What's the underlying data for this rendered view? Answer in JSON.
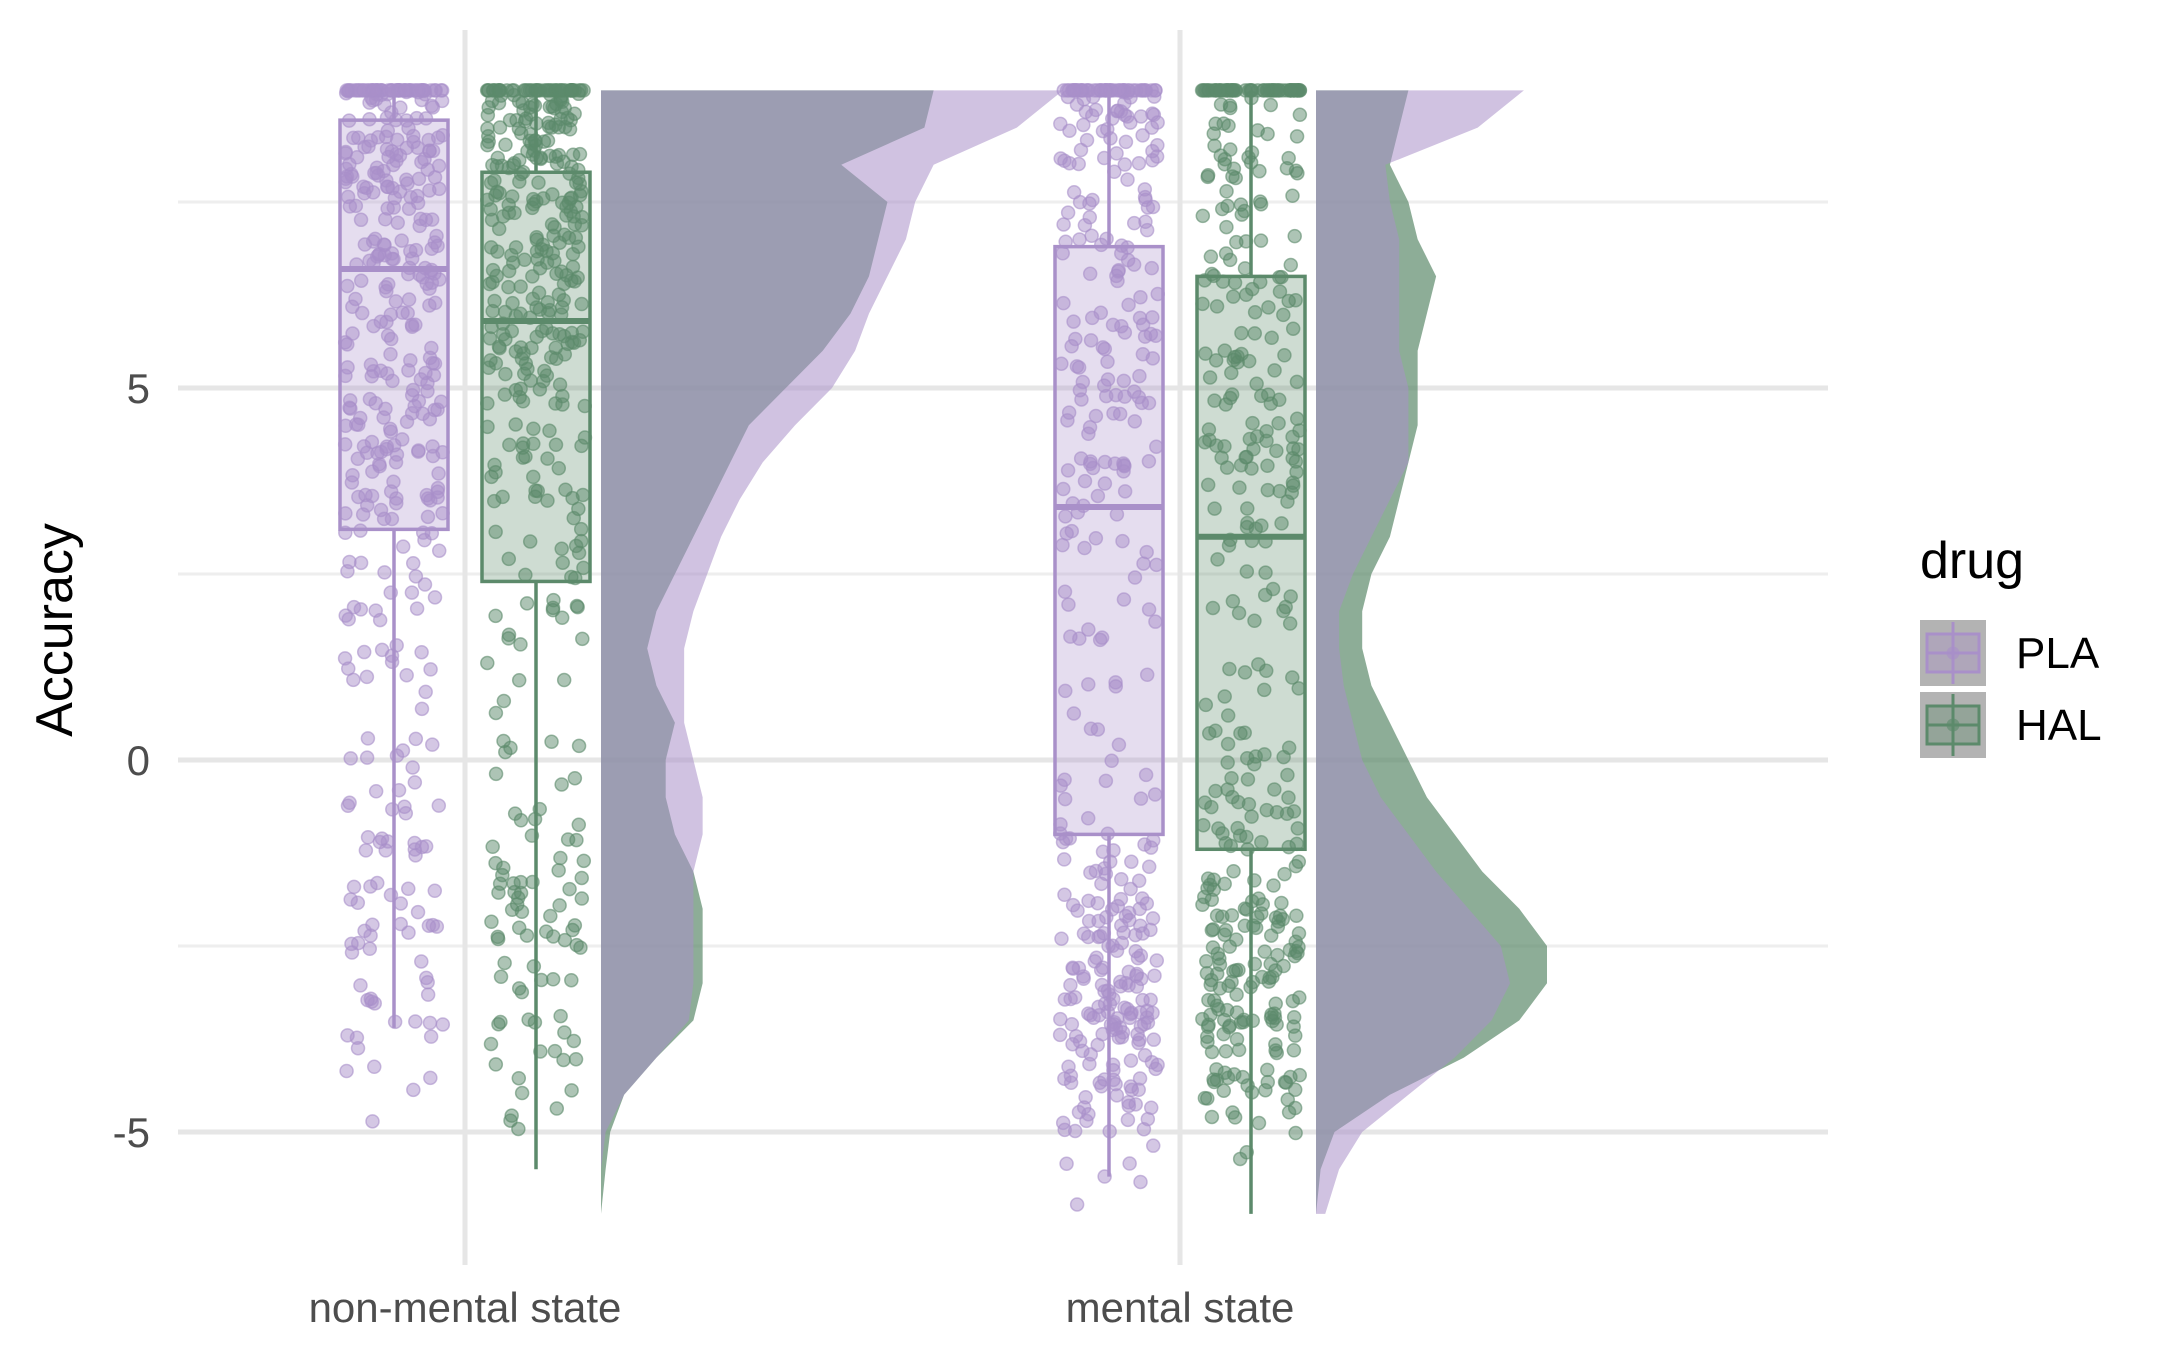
{
  "chart_data": {
    "type": "raincloud",
    "xlabel": "",
    "ylabel": "Accuracy",
    "categories": [
      "non-mental state",
      "mental state"
    ],
    "y_ticks": [
      -5,
      0,
      5
    ],
    "ylim": [
      -6.4,
      9.5
    ],
    "grid": true,
    "legend": {
      "title": "drug",
      "position": "right",
      "items": [
        {
          "label": "PLA",
          "color": "#A990C9"
        },
        {
          "label": "HAL",
          "color": "#5C8A6B"
        }
      ]
    },
    "series": [
      {
        "name": "PLA",
        "color": "#A990C9",
        "box": [
          {
            "category": "non-mental state",
            "min": -3.6,
            "q1": 3.1,
            "median": 6.6,
            "q3": 8.6,
            "max": 9.0
          },
          {
            "category": "mental state",
            "min": -5.6,
            "q1": -1.0,
            "median": 3.4,
            "q3": 6.9,
            "max": 9.0
          }
        ]
      },
      {
        "name": "HAL",
        "color": "#5C8A6B",
        "box": [
          {
            "category": "non-mental state",
            "min": -5.5,
            "q1": 2.4,
            "median": 5.9,
            "q3": 7.9,
            "max": 9.0
          },
          {
            "category": "mental state",
            "min": -6.1,
            "q1": -1.2,
            "median": 3.0,
            "q3": 6.5,
            "max": 9.0
          }
        ]
      }
    ],
    "density_y": [
      -6.1,
      -5.5,
      -5,
      -4.5,
      -4,
      -3.5,
      -3,
      -2.5,
      -2,
      -1.5,
      -1,
      -0.5,
      0,
      0.5,
      1,
      1.5,
      2,
      2.5,
      3,
      3.5,
      4,
      4.5,
      5,
      5.5,
      6,
      6.5,
      7,
      7.5,
      8,
      8.5,
      9
    ],
    "density": {
      "non-mental state": {
        "PLA": [
          0,
          0,
          0.01,
          0.05,
          0.12,
          0.19,
          0.2,
          0.2,
          0.2,
          0.2,
          0.22,
          0.22,
          0.2,
          0.18,
          0.18,
          0.18,
          0.2,
          0.23,
          0.26,
          0.3,
          0.35,
          0.42,
          0.5,
          0.55,
          0.58,
          0.62,
          0.66,
          0.68,
          0.72,
          0.9,
          1.0
        ],
        "HAL": [
          0,
          0.01,
          0.02,
          0.05,
          0.12,
          0.2,
          0.22,
          0.22,
          0.22,
          0.2,
          0.16,
          0.14,
          0.14,
          0.16,
          0.12,
          0.1,
          0.12,
          0.16,
          0.2,
          0.24,
          0.28,
          0.32,
          0.4,
          0.48,
          0.54,
          0.58,
          0.6,
          0.62,
          0.52,
          0.7,
          0.72
        ]
      },
      "mental state": {
        "PLA": [
          0.02,
          0.05,
          0.1,
          0.2,
          0.3,
          0.38,
          0.42,
          0.4,
          0.33,
          0.26,
          0.2,
          0.14,
          0.1,
          0.08,
          0.06,
          0.05,
          0.05,
          0.08,
          0.12,
          0.16,
          0.2,
          0.2,
          0.2,
          0.18,
          0.18,
          0.18,
          0.18,
          0.16,
          0.15,
          0.35,
          0.45
        ],
        "HAL": [
          0,
          0.01,
          0.04,
          0.16,
          0.32,
          0.44,
          0.5,
          0.5,
          0.44,
          0.36,
          0.3,
          0.24,
          0.2,
          0.16,
          0.12,
          0.1,
          0.1,
          0.12,
          0.16,
          0.18,
          0.2,
          0.22,
          0.22,
          0.22,
          0.24,
          0.26,
          0.22,
          0.2,
          0.16,
          0.18,
          0.2
        ]
      }
    }
  }
}
